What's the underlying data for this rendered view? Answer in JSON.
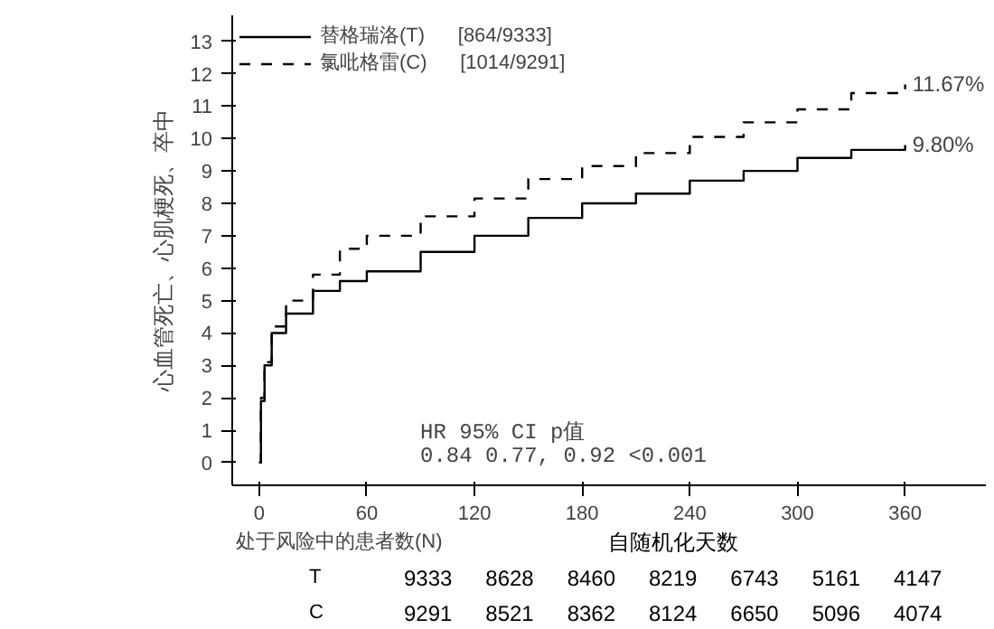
{
  "chart_data": {
    "type": "step",
    "ylabel": "心血管死亡、心肌梗死、卒中",
    "xlabel": "自随机化天数",
    "x": [
      0,
      1,
      3,
      7,
      15,
      30,
      45,
      60,
      90,
      120,
      150,
      180,
      210,
      240,
      270,
      300,
      330,
      360
    ],
    "series": [
      {
        "name": "替格瑞洛(T)      [864/9333]",
        "color": "#000000",
        "line_style": "solid",
        "values": [
          0,
          1.9,
          3.0,
          4.0,
          4.6,
          5.3,
          5.6,
          5.9,
          6.5,
          7.0,
          7.55,
          8.0,
          8.3,
          8.7,
          9.0,
          9.4,
          9.65,
          9.8
        ]
      },
      {
        "name": "氯吡格雷(C)      [1014/9291]",
        "color": "#000000",
        "line_style": "dashed",
        "values": [
          0,
          2.0,
          3.1,
          4.2,
          5.0,
          5.8,
          6.6,
          7.0,
          7.6,
          8.15,
          8.75,
          9.15,
          9.55,
          10.05,
          10.5,
          10.9,
          11.4,
          11.67
        ]
      }
    ],
    "xlim": [
      -15,
      405
    ],
    "xticks": [
      0,
      60,
      120,
      180,
      240,
      300,
      360
    ],
    "ylim": [
      -0.7,
      13.8
    ],
    "yticks": [
      0,
      1,
      2,
      3,
      4,
      5,
      6,
      7,
      8,
      9,
      10,
      11,
      12,
      13
    ],
    "grid": false,
    "legend": "top left",
    "annotations": [
      {
        "text": "11.67%",
        "x": 360,
        "y": 11.67
      },
      {
        "text": "9.80%",
        "x": 360,
        "y": 9.8
      },
      "HR      95% CI       p值",
      "0.84    0.77, 0.92   <0.001",
      "处于风险中的患者数(N)",
      "T 9333 8628 8460 8219 6743 5161 4147",
      "C 9291 8521 8362 8124 6650 5096 4074"
    ]
  }
}
